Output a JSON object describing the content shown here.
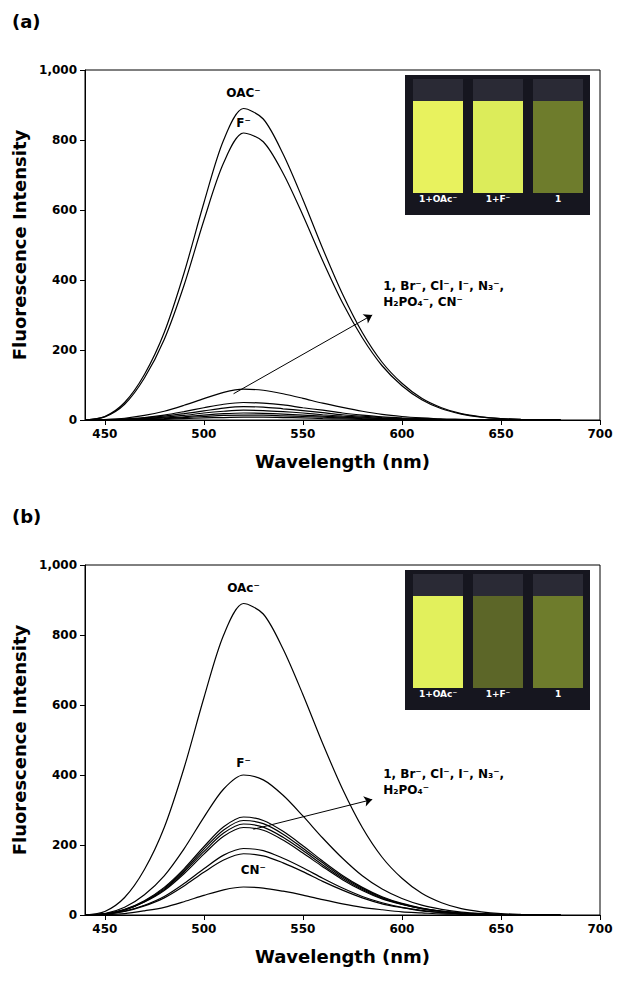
{
  "chart_data": [
    {
      "type": "line",
      "panel": "(a)",
      "x_label": "Wavelength (nm)",
      "y_label": "Fluorescence Intensity",
      "x": [
        440,
        450,
        460,
        470,
        480,
        490,
        500,
        510,
        520,
        530,
        540,
        550,
        560,
        570,
        580,
        590,
        600,
        610,
        620,
        630,
        640,
        650,
        660,
        670,
        680
      ],
      "xlim": [
        440,
        700
      ],
      "xticks": [
        450,
        500,
        550,
        600,
        650,
        700
      ],
      "ylim": [
        0,
        1000
      ],
      "yticks": [
        0,
        200,
        400,
        600,
        800,
        1000
      ],
      "grid": false,
      "series": [
        {
          "color": "#000000",
          "line_style": "solid",
          "values": [
            0,
            10,
            50,
            130,
            250,
            420,
            620,
            800,
            890,
            860,
            760,
            630,
            490,
            360,
            250,
            165,
            105,
            62,
            35,
            18,
            9,
            4,
            2,
            1,
            0
          ]
        },
        {
          "color": "#000000",
          "line_style": "solid",
          "values": [
            0,
            9,
            45,
            120,
            230,
            385,
            570,
            735,
            820,
            795,
            705,
            585,
            455,
            335,
            235,
            155,
            98,
            58,
            32,
            17,
            8,
            4,
            2,
            1,
            0
          ]
        },
        {
          "color": "#000000",
          "line_style": "solid",
          "values": [
            0,
            1,
            5,
            13,
            25,
            42,
            61,
            79,
            88,
            85,
            75,
            62,
            48,
            36,
            25,
            16,
            10,
            6,
            3,
            2,
            1,
            0,
            0,
            0,
            0
          ]
        },
        {
          "color": "#000000",
          "line_style": "solid",
          "values": [
            0,
            1,
            3,
            7,
            14,
            24,
            35,
            45,
            50,
            48,
            43,
            35,
            28,
            20,
            14,
            9,
            6,
            4,
            2,
            1,
            0,
            0,
            0,
            0,
            0
          ]
        },
        {
          "color": "#000000",
          "line_style": "solid",
          "values": [
            0,
            0,
            2,
            6,
            11,
            18,
            26,
            34,
            38,
            37,
            32,
            27,
            21,
            15,
            11,
            7,
            4,
            3,
            1,
            1,
            0,
            0,
            0,
            0,
            0
          ]
        },
        {
          "color": "#000000",
          "line_style": "solid",
          "values": [
            0,
            0,
            2,
            4,
            8,
            13,
            20,
            25,
            28,
            27,
            24,
            20,
            15,
            11,
            8,
            5,
            3,
            2,
            1,
            1,
            0,
            0,
            0,
            0,
            0
          ]
        },
        {
          "color": "#000000",
          "line_style": "solid",
          "values": [
            0,
            0,
            1,
            3,
            6,
            9,
            14,
            18,
            20,
            19,
            17,
            14,
            11,
            8,
            6,
            4,
            2,
            1,
            1,
            0,
            0,
            0,
            0,
            0,
            0
          ]
        },
        {
          "color": "#000000",
          "line_style": "solid",
          "values": [
            0,
            0,
            1,
            2,
            4,
            7,
            10,
            13,
            14,
            14,
            12,
            10,
            8,
            6,
            4,
            3,
            2,
            1,
            1,
            0,
            0,
            0,
            0,
            0,
            0
          ]
        },
        {
          "color": "#000000",
          "line_style": "solid",
          "values": [
            0,
            0,
            0,
            1,
            2,
            4,
            6,
            7,
            8,
            8,
            7,
            6,
            4,
            3,
            2,
            1,
            1,
            1,
            0,
            0,
            0,
            0,
            0,
            0,
            0
          ]
        }
      ],
      "annotations": [
        {
          "text": "OAC⁻",
          "x": 520,
          "y": 935
        },
        {
          "text": "F⁻",
          "x": 520,
          "y": 850
        },
        {
          "text": [
            "1, Br⁻, Cl⁻, I⁻, N₃⁻,",
            "H₂PO₄⁻, CN⁻"
          ],
          "x": 588,
          "y": 360
        }
      ],
      "arrow": {
        "from": [
          515,
          75
        ],
        "to": [
          585,
          300
        ]
      },
      "inset": {
        "labels": [
          "1+OAc⁻",
          "1+F⁻",
          "1"
        ],
        "colors": [
          "#e8f25e",
          "#dcec5a",
          "#6e7c2c"
        ]
      }
    },
    {
      "type": "line",
      "panel": "(b)",
      "x_label": "Wavelength (nm)",
      "y_label": "Fluorescence Intensity",
      "x": [
        440,
        450,
        460,
        470,
        480,
        490,
        500,
        510,
        520,
        530,
        540,
        550,
        560,
        570,
        580,
        590,
        600,
        610,
        620,
        630,
        640,
        650,
        660,
        670,
        680
      ],
      "xlim": [
        440,
        700
      ],
      "xticks": [
        450,
        500,
        550,
        600,
        650,
        700
      ],
      "ylim": [
        0,
        1000
      ],
      "yticks": [
        0,
        200,
        400,
        600,
        800,
        1000
      ],
      "grid": false,
      "series": [
        {
          "color": "#000000",
          "line_style": "solid",
          "values": [
            0,
            10,
            50,
            130,
            250,
            420,
            620,
            800,
            890,
            860,
            760,
            630,
            490,
            360,
            250,
            165,
            105,
            62,
            35,
            18,
            9,
            4,
            2,
            1,
            0
          ]
        },
        {
          "color": "#000000",
          "line_style": "solid",
          "values": [
            0,
            4,
            22,
            58,
            112,
            189,
            279,
            360,
            400,
            386,
            342,
            283,
            220,
            162,
            112,
            74,
            47,
            28,
            16,
            8,
            4,
            2,
            1,
            0,
            0
          ]
        },
        {
          "color": "#000000",
          "line_style": "solid",
          "values": [
            0,
            3,
            16,
            41,
            79,
            132,
            195,
            252,
            280,
            270,
            239,
            198,
            154,
            113,
            79,
            52,
            33,
            20,
            11,
            6,
            3,
            1,
            1,
            0,
            0
          ]
        },
        {
          "color": "#000000",
          "line_style": "solid",
          "values": [
            0,
            3,
            15,
            39,
            76,
            127,
            188,
            243,
            270,
            261,
            231,
            191,
            149,
            109,
            76,
            50,
            32,
            19,
            11,
            5,
            3,
            1,
            1,
            0,
            0
          ]
        },
        {
          "color": "#000000",
          "line_style": "solid",
          "values": [
            0,
            3,
            15,
            38,
            73,
            123,
            181,
            234,
            260,
            251,
            222,
            184,
            143,
            105,
            73,
            48,
            31,
            18,
            10,
            5,
            3,
            1,
            1,
            0,
            0
          ]
        },
        {
          "color": "#000000",
          "line_style": "solid",
          "values": [
            0,
            3,
            14,
            37,
            70,
            118,
            174,
            225,
            250,
            242,
            214,
            177,
            138,
            101,
            70,
            46,
            30,
            18,
            10,
            5,
            3,
            1,
            0,
            0,
            0
          ]
        },
        {
          "color": "#000000",
          "line_style": "solid",
          "values": [
            0,
            2,
            11,
            28,
            53,
            90,
            132,
            171,
            190,
            184,
            162,
            135,
            105,
            77,
            53,
            35,
            22,
            13,
            7,
            4,
            2,
            1,
            0,
            0,
            0
          ]
        },
        {
          "color": "#000000",
          "line_style": "solid",
          "values": [
            0,
            2,
            10,
            26,
            49,
            83,
            122,
            157,
            175,
            169,
            149,
            124,
            96,
            71,
            49,
            32,
            21,
            12,
            7,
            4,
            2,
            1,
            0,
            0,
            0
          ]
        },
        {
          "color": "#000000",
          "line_style": "solid",
          "values": [
            0,
            1,
            4,
            12,
            22,
            38,
            56,
            72,
            80,
            77,
            68,
            57,
            44,
            32,
            22,
            15,
            9,
            6,
            3,
            2,
            1,
            0,
            0,
            0,
            0
          ]
        }
      ],
      "annotations": [
        {
          "text": "OAc⁻",
          "x": 520,
          "y": 935
        },
        {
          "text": "F⁻",
          "x": 520,
          "y": 435
        },
        {
          "text": "CN⁻",
          "x": 525,
          "y": 128
        },
        {
          "text": [
            "1, Br⁻, Cl⁻, I⁻, N₃⁻,",
            "H₂PO₄⁻"
          ],
          "x": 588,
          "y": 380
        }
      ],
      "arrow": {
        "from": [
          525,
          245
        ],
        "to": [
          585,
          330
        ]
      },
      "inset": {
        "labels": [
          "1+OAc⁻",
          "1+F⁻",
          "1"
        ],
        "colors": [
          "#e2f05c",
          "#5c6628",
          "#6e7c2c"
        ]
      }
    }
  ]
}
